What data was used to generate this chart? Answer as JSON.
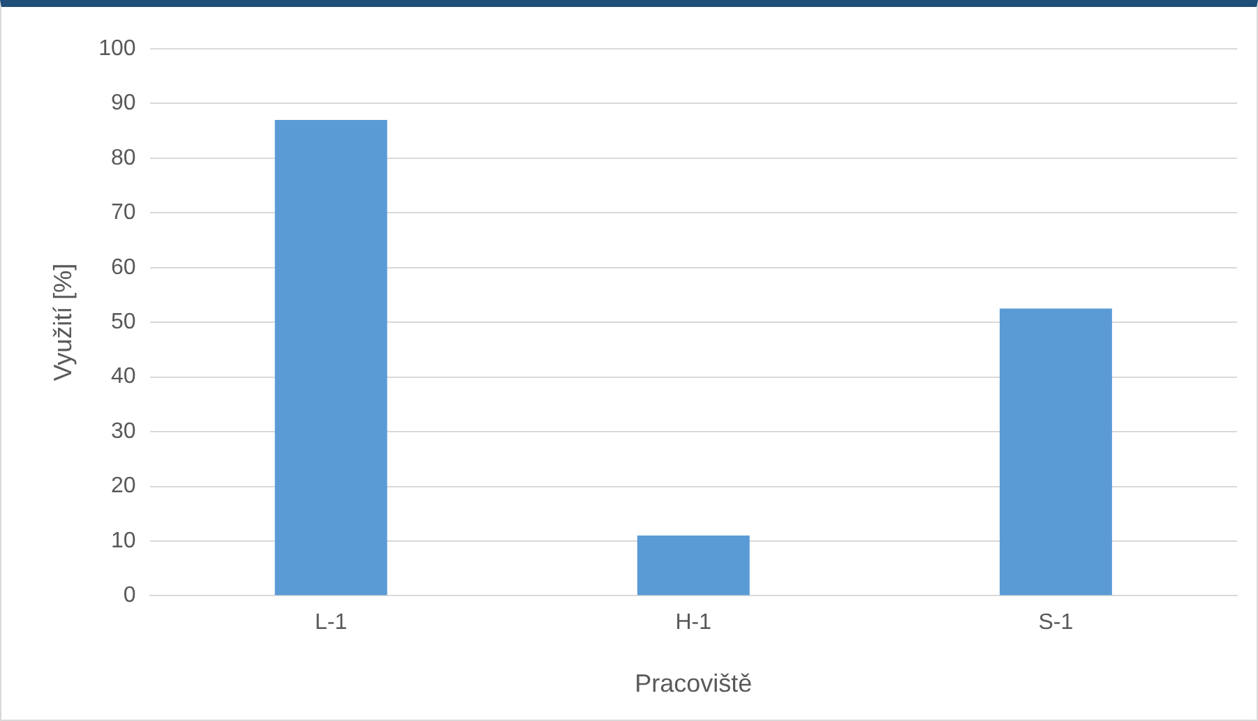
{
  "chart_data": {
    "type": "bar",
    "xlabel": "Pracoviště",
    "ylabel": "Využití [%]",
    "categories": [
      "L-1",
      "H-1",
      "S-1"
    ],
    "values": [
      87,
      11,
      52.5
    ],
    "color": "#5b9bd5",
    "ylim": [
      0,
      100
    ],
    "yticks": [
      0,
      10,
      20,
      30,
      40,
      50,
      60,
      70,
      80,
      90,
      100
    ],
    "grid": "y",
    "legend": false
  }
}
